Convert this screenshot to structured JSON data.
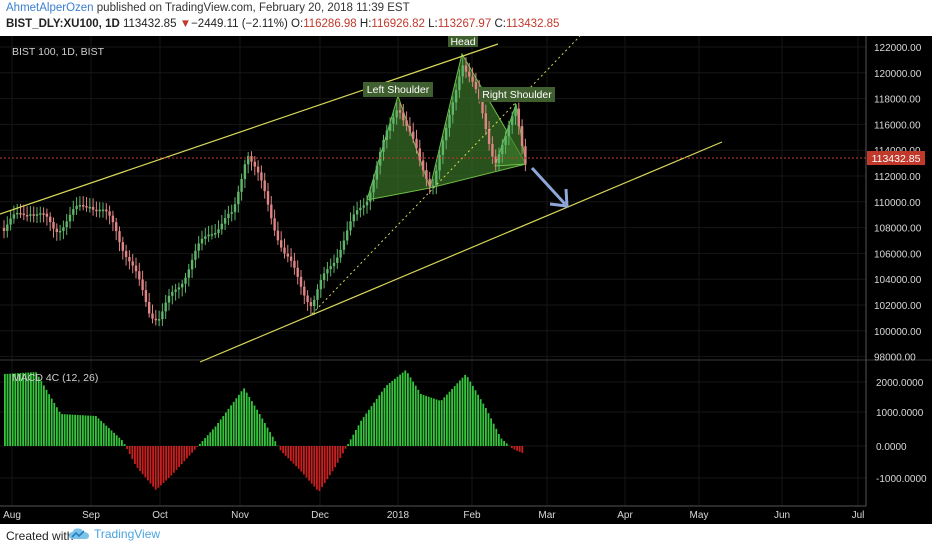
{
  "header": {
    "author": "AhmetAlperOzen",
    "published": " published on TradingView.com, February 20, 2018 11:39 EST",
    "symbol_line": "BIST_DLY:XU100, 1D",
    "last": "113432.85",
    "change_arrow": "▼",
    "change": "−2449.11 (−2.11%)",
    "o_label": "O:",
    "o": "116286.98",
    "h_label": "H:",
    "h": "116926.82",
    "l_label": "L:",
    "l": "113267.97",
    "c_label": "C:",
    "c": "113432.85"
  },
  "chart": {
    "pane_title": "BIST 100, 1D, BIST",
    "price_badge": "113432.85",
    "annotations": {
      "left_shoulder": "Left Shoulder",
      "head": "Head",
      "right_shoulder": "Right Shoulder"
    },
    "price_axis": [
      "122000.00",
      "120000.00",
      "118000.00",
      "116000.00",
      "114000.00",
      "112000.00",
      "110000.00",
      "108000.00",
      "106000.00",
      "104000.00",
      "102000.00",
      "100000.00",
      "98000.00"
    ],
    "macd_title": "MACD 4C (12, 26)",
    "macd_axis": [
      "2000.0000",
      "1000.0000",
      "0.0000",
      "-1000.0000"
    ],
    "time_axis": [
      "Aug",
      "Sep",
      "Oct",
      "Nov",
      "Dec",
      "2018",
      "Feb",
      "Mar",
      "Apr",
      "May",
      "Jun",
      "Jul"
    ],
    "colors": {
      "up": "#5fb56a",
      "down": "#e08585",
      "line": "#d6d65a",
      "macd_up": "#35c43c",
      "macd_down": "#c81f1f",
      "arrow": "#8fa7d8"
    }
  },
  "footer": {
    "created_with": "Created with",
    "brand": "TradingView"
  }
}
